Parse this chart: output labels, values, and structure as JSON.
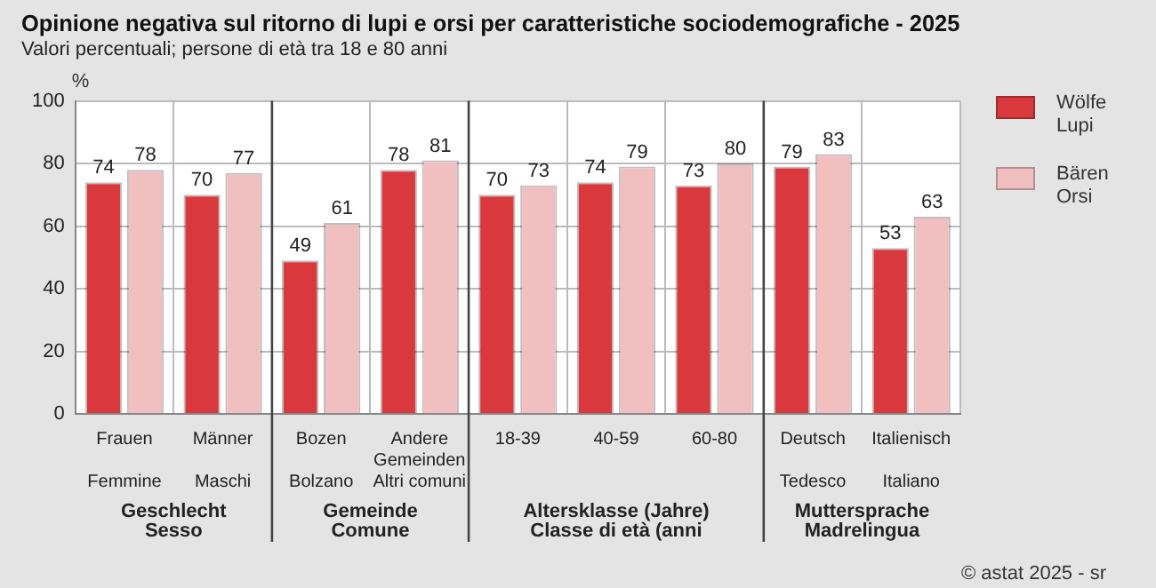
{
  "chart_data": {
    "type": "bar",
    "title": "Opinione negativa sul ritorno di lupi e orsi per caratteristiche sociodemografiche - 2025",
    "subtitle": "Valori percentuali; persone di età tra 18 e 80 anni",
    "ylabel": "%",
    "categories": [
      "Frauen\nFemmine",
      "Männer\nMaschi",
      "Bozen\nBolzano",
      "Andere\nGemeinden\nAltri comuni",
      "18-39",
      "40-59",
      "60-80",
      "Deutsch\nTedesco",
      "Italienisch\nItaliano"
    ],
    "series": [
      {
        "name": "Wölfe\nLupi",
        "color": "#d9383c",
        "values": [
          74,
          70,
          49,
          78,
          70,
          74,
          73,
          79,
          53
        ]
      },
      {
        "name": "Bären\nOrsi",
        "color": "#f1bfc0",
        "values": [
          78,
          77,
          61,
          81,
          73,
          79,
          80,
          83,
          63
        ]
      }
    ],
    "ylim": [
      0,
      100
    ],
    "yticks": [
      0,
      20,
      40,
      60,
      80,
      100
    ],
    "grid": true,
    "legend": "top right",
    "data_labels": true,
    "annotations": [
      "Geschlecht\nSesso",
      "Gemeinde\nComune",
      "Altersklasse (Jahre)\nClasse di età (anni",
      "Muttersprache\nMadrelingua",
      "© astat 2025 - sr"
    ]
  }
}
